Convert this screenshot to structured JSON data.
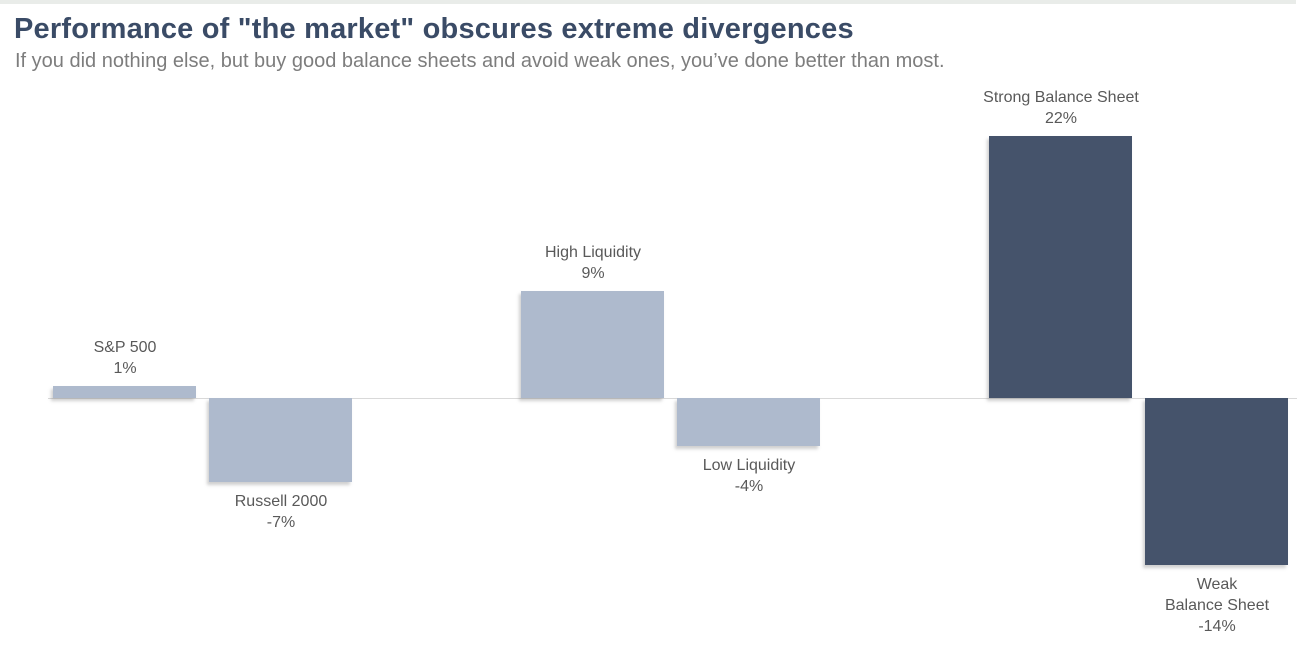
{
  "page": {
    "title": "Performance of \"the market\" obscures extreme divergences",
    "subtitle": "If you did nothing else, but buy good balance sheets and avoid weak ones, you’ve done better than most."
  },
  "colors": {
    "title_text": "#3a4b66",
    "subtitle_text": "#7d7d7d",
    "label_text": "#595959",
    "light_bar": "#aebacd",
    "dark_bar": "#45536b",
    "baseline_line": "#d9d9d9",
    "top_strip": "#e9ece9",
    "background": "#ffffff"
  },
  "chart_data": {
    "type": "bar",
    "title": "Performance of \"the market\" obscures extreme divergences",
    "subtitle": "If you did nothing else, but buy good balance sheets and avoid weak ones, you’ve done better than most.",
    "categories": [
      "S&P 500",
      "Russell 2000",
      "High Liquidity",
      "Low Liquidity",
      "Strong Balance Sheet",
      "Weak Balance Sheet"
    ],
    "values": [
      1,
      -7,
      9,
      -4,
      22,
      -14
    ],
    "xlabel": "",
    "ylabel": "",
    "ylim": [
      -16,
      24
    ],
    "grid": false,
    "legend": false,
    "data_labels": true,
    "bars": [
      {
        "name": "sp500",
        "label_lines": [
          "S&P 500"
        ],
        "value": 1,
        "value_label": "1%",
        "color_key": "light_bar",
        "slot": 0
      },
      {
        "name": "russell2000",
        "label_lines": [
          "Russell 2000"
        ],
        "value": -7,
        "value_label": "-7%",
        "color_key": "light_bar",
        "slot": 1
      },
      {
        "name": "high-liquidity",
        "label_lines": [
          "High Liquidity"
        ],
        "value": 9,
        "value_label": "9%",
        "color_key": "light_bar",
        "slot": 3
      },
      {
        "name": "low-liquidity",
        "label_lines": [
          "Low Liquidity"
        ],
        "value": -4,
        "value_label": "-4%",
        "color_key": "light_bar",
        "slot": 4
      },
      {
        "name": "strong-balance-sheet",
        "label_lines": [
          "Strong Balance Sheet"
        ],
        "value": 22,
        "value_label": "22%",
        "color_key": "dark_bar",
        "slot": 6
      },
      {
        "name": "weak-balance-sheet",
        "label_lines": [
          "Weak",
          "Balance Sheet"
        ],
        "value": -14,
        "value_label": "-14%",
        "color_key": "dark_bar",
        "slot": 7
      }
    ]
  }
}
